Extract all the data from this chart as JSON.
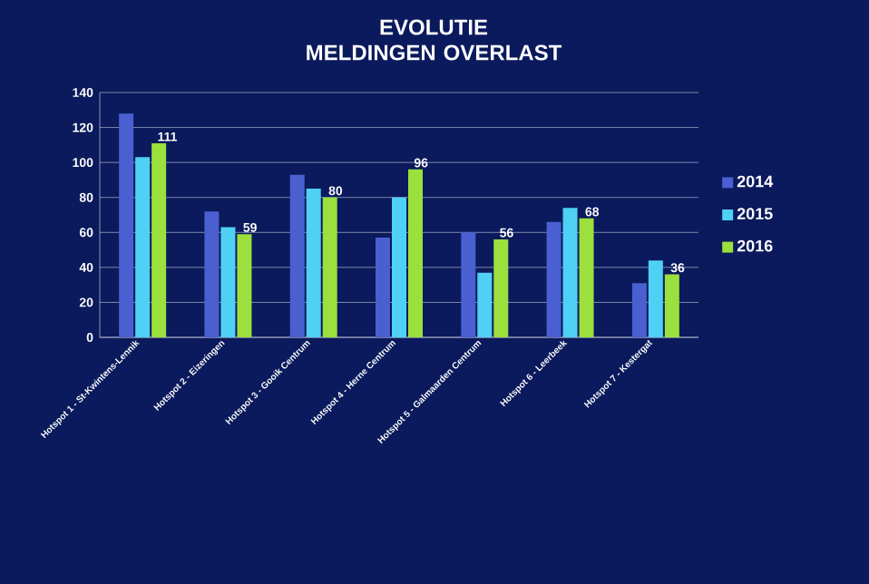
{
  "chart_data": {
    "type": "bar",
    "title": "EVOLUTIE\nMELDINGEN OVERLAST",
    "categories": [
      "Hotspot 1 - St-Kwintens-Lennik",
      "Hotspot 2 - Eizeringen",
      "Hotspot 3 - Gooik Centrum",
      "Hotspot 4 - Herne Centrum",
      "Hotspot 5 - Galmaarden Centrum",
      "Hotspot 6 - Leerbeek",
      "Hotspot 7 - Kestergat"
    ],
    "series": [
      {
        "name": "2014",
        "color": "#4a5fd0",
        "values": [
          128,
          72,
          93,
          57,
          60,
          66,
          31
        ]
      },
      {
        "name": "2015",
        "color": "#4fd0f5",
        "values": [
          103,
          63,
          85,
          80,
          37,
          74,
          44
        ]
      },
      {
        "name": "2016",
        "color": "#9be03c",
        "values": [
          111,
          59,
          80,
          96,
          56,
          68,
          36
        ],
        "value_labels": [
          "111",
          "59",
          "80",
          "96",
          "56",
          "68",
          "36"
        ]
      }
    ],
    "ylim": [
      0,
      140
    ],
    "yticks": [
      0,
      20,
      40,
      60,
      80,
      100,
      120,
      140
    ],
    "grid": "y",
    "legend": "right"
  }
}
